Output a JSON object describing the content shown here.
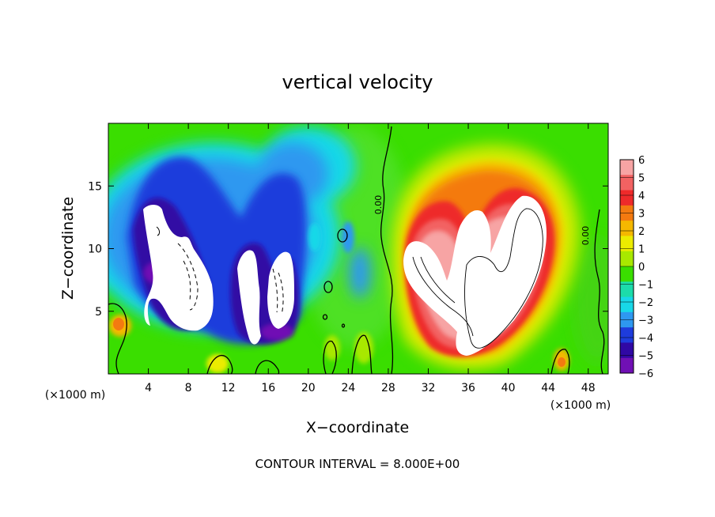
{
  "chart_data": {
    "type": "heatmap",
    "title": "vertical velocity",
    "xlabel": "X−coordinate",
    "ylabel": "Z−coordinate",
    "x_unit_left": "(×1000 m)",
    "x_unit_right": "(×1000 m)",
    "footer": "CONTOUR INTERVAL = 8.000E+00",
    "xlim": [
      0,
      50
    ],
    "ylim": [
      0,
      20
    ],
    "x_ticks": [
      {
        "v": 4,
        "label": "4"
      },
      {
        "v": 8,
        "label": "8"
      },
      {
        "v": 12,
        "label": "12"
      },
      {
        "v": 16,
        "label": "16"
      },
      {
        "v": 20,
        "label": "20"
      },
      {
        "v": 24,
        "label": "24"
      },
      {
        "v": 28,
        "label": "28"
      },
      {
        "v": 32,
        "label": "32"
      },
      {
        "v": 36,
        "label": "36"
      },
      {
        "v": 40,
        "label": "40"
      },
      {
        "v": 44,
        "label": "44"
      },
      {
        "v": 48,
        "label": "48"
      }
    ],
    "y_ticks": [
      {
        "v": 5,
        "label": "5"
      },
      {
        "v": 10,
        "label": "10"
      },
      {
        "v": 15,
        "label": "15"
      }
    ],
    "colorbar": {
      "min": -6,
      "max": 6,
      "labels": [
        "6",
        "5",
        "4",
        "3",
        "2",
        "1",
        "0",
        "−1",
        "−2",
        "−3",
        "−4",
        "−5",
        "−6"
      ],
      "colors": [
        "#f7a4a4",
        "#f26262",
        "#ee2a2a",
        "#f47a10",
        "#f5b800",
        "#ecec00",
        "#a8e800",
        "#3ade00",
        "#1cdcaa",
        "#18d8e8",
        "#2e98f0",
        "#1e3cdc",
        "#3008a4",
        "#7010b4"
      ]
    },
    "contour_labels": [
      {
        "x": 27.3,
        "z": 13.1,
        "label": "0.00",
        "angle": -90
      },
      {
        "x": 48.0,
        "z": 11.2,
        "label": "0.00",
        "angle": -90
      }
    ],
    "features": [
      {
        "name": "downdraft-left",
        "x": 8.5,
        "z": 9.5,
        "w": -8
      },
      {
        "name": "downdraft-middle",
        "x": 16.0,
        "z": 7.5,
        "w": -7
      },
      {
        "name": "updraft-core",
        "x": 38.0,
        "z": 9.0,
        "w": 8
      },
      {
        "name": "weak-updraft-left",
        "x": 0.8,
        "z": 3.5,
        "w": 3
      }
    ]
  }
}
